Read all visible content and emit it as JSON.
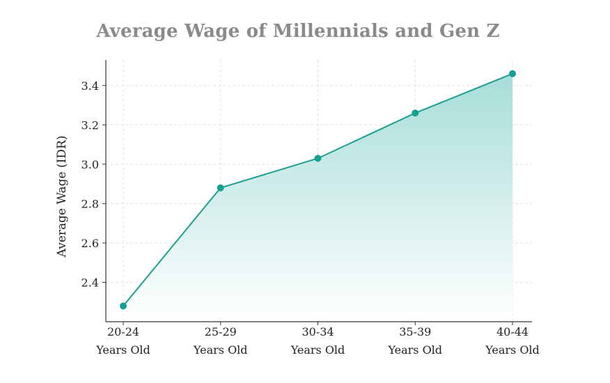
{
  "chart_data": {
    "type": "area",
    "title": "Average Wage of Millennials and Gen Z",
    "xlabel": "",
    "ylabel": "Average Wage (IDR)",
    "categories": [
      "20-24 Years Old",
      "25-29 Years Old",
      "30-34 Years Old",
      "35-39 Years Old",
      "40-44 Years Old"
    ],
    "category_lines": [
      [
        "20-24",
        "Years Old"
      ],
      [
        "25-29",
        "Years Old"
      ],
      [
        "30-34",
        "Years Old"
      ],
      [
        "35-39",
        "Years Old"
      ],
      [
        "40-44",
        "Years Old"
      ]
    ],
    "values": [
      2.28,
      2.88,
      3.03,
      3.26,
      3.46
    ],
    "ylim": [
      2.2,
      3.53
    ],
    "yticks": [
      "2.4",
      "2.6",
      "2.8",
      "3.0",
      "3.2",
      "3.4"
    ],
    "grid": true,
    "legend": "none",
    "colors": {
      "line": "#1a9e90",
      "marker": "#17a091",
      "fill_top": "#a6ddd8",
      "fill_bottom": "#ffffff",
      "grid": "#e0e0e0",
      "axis": "#333333",
      "title": "#8a8a8a"
    }
  }
}
